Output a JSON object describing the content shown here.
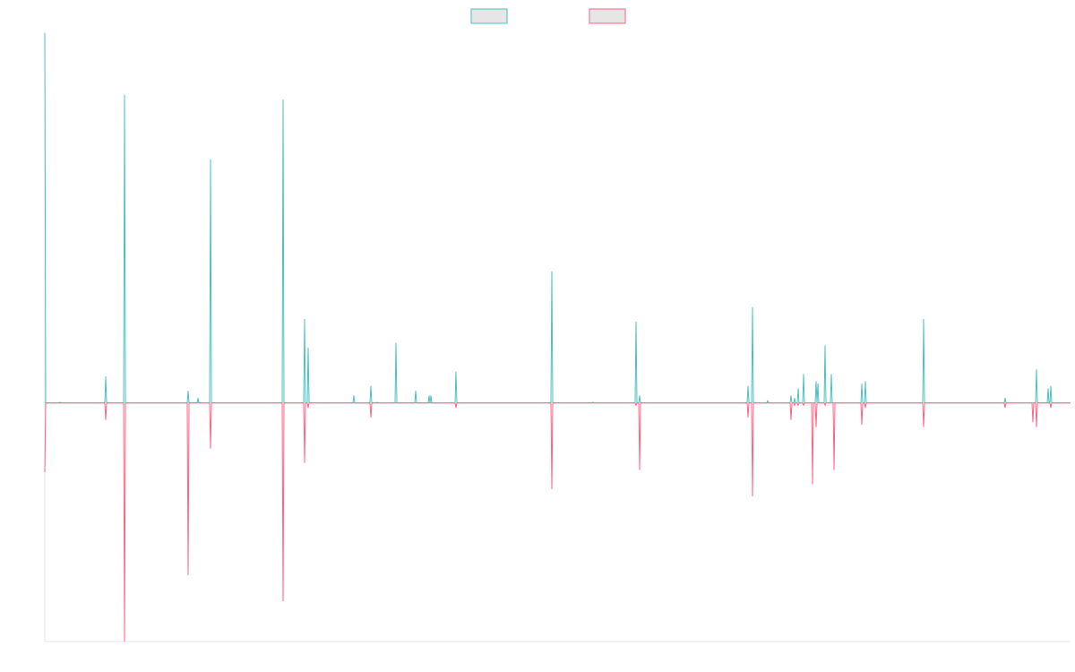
{
  "chart_data": {
    "type": "line",
    "title": "",
    "xlabel": "",
    "ylabel": "",
    "ylim": [
      -1.0,
      1.55
    ],
    "grid": false,
    "legend_placement": "top-center",
    "x": [
      0,
      1,
      2,
      3,
      4,
      5,
      6,
      7,
      8,
      9,
      10,
      11,
      12,
      13,
      14,
      15,
      16,
      17,
      18,
      19,
      20,
      21,
      22,
      23,
      24,
      25,
      26,
      27,
      28,
      29,
      30,
      31,
      32,
      33,
      34,
      35,
      36,
      37,
      38,
      39,
      40,
      41,
      42,
      43,
      44,
      45,
      46,
      47,
      48,
      49,
      50,
      51,
      52,
      53,
      54,
      55,
      56,
      57,
      58,
      59,
      60,
      61,
      62,
      63,
      64,
      65,
      66,
      67,
      68,
      69,
      70,
      71,
      72,
      73,
      74,
      75,
      76,
      77,
      78,
      79,
      80,
      81,
      82,
      83,
      84,
      85,
      86,
      87,
      88,
      89,
      90,
      91,
      92,
      93,
      94,
      95,
      96,
      97,
      98,
      99,
      100,
      101,
      102,
      103,
      104,
      105,
      106,
      107,
      108,
      109,
      110,
      111,
      112,
      113,
      114,
      115,
      116,
      117,
      118,
      119,
      120,
      121,
      122,
      123,
      124,
      125,
      126,
      127,
      128,
      129,
      130,
      131,
      132,
      133,
      134,
      135,
      136,
      137,
      138,
      139,
      140,
      141,
      142,
      143,
      144,
      145,
      146,
      147,
      148,
      149,
      150,
      151,
      152,
      153,
      154,
      155,
      156,
      157,
      158,
      159,
      160,
      161,
      162,
      163,
      164,
      165,
      166,
      167,
      168,
      169,
      170,
      171,
      172,
      173,
      174,
      175,
      176,
      177,
      178,
      179,
      180,
      181,
      182,
      183,
      184,
      185,
      186,
      187,
      188,
      189,
      190,
      191,
      192,
      193,
      194,
      195,
      196,
      197,
      198,
      199,
      200,
      201,
      202,
      203,
      204,
      205,
      206,
      207,
      208,
      209,
      210,
      211,
      212,
      213,
      214,
      215,
      216,
      217,
      218,
      219,
      220,
      221,
      222,
      223,
      224,
      225,
      226,
      227,
      228,
      229,
      230,
      231,
      232,
      233,
      234,
      235,
      236,
      237,
      238,
      239,
      240,
      241,
      242,
      243,
      244,
      245,
      246,
      247,
      248,
      249,
      250,
      251,
      252,
      253,
      254,
      255,
      256,
      257,
      258,
      259,
      260,
      261,
      262,
      263,
      264,
      265,
      266,
      267,
      268,
      269,
      270,
      271,
      272,
      273,
      274,
      275,
      276,
      277,
      278,
      279,
      280,
      281,
      282,
      283,
      284,
      285,
      286,
      287,
      288,
      289,
      290,
      291,
      292,
      293,
      294,
      295,
      296,
      297,
      298,
      299,
      300,
      301,
      302,
      303,
      304,
      305,
      306,
      307,
      308,
      309,
      310,
      311,
      312,
      313,
      314,
      315,
      316,
      317,
      318,
      319,
      320,
      321,
      322,
      323,
      324,
      325,
      326,
      327,
      328,
      329,
      330,
      331,
      332,
      333,
      334,
      335,
      336,
      337,
      338,
      339,
      340,
      341,
      342,
      343,
      344,
      345,
      346,
      347,
      348,
      349,
      350,
      351,
      352,
      353,
      354,
      355,
      356,
      357,
      358,
      359,
      360,
      361,
      362,
      363,
      364,
      365,
      366,
      367,
      368,
      369,
      370,
      371,
      372,
      373,
      374,
      375,
      376,
      377,
      378,
      379,
      380,
      381,
      382,
      383,
      384,
      385,
      386,
      387,
      388,
      389,
      390,
      391,
      392,
      393,
      394,
      395,
      396,
      397,
      398,
      399,
      400,
      401,
      402,
      403,
      404,
      405,
      406,
      407,
      408,
      409,
      410,
      411,
      412,
      413,
      414,
      415,
      416,
      417,
      418,
      419,
      420,
      421,
      422,
      423,
      424,
      425,
      426,
      427,
      428,
      429,
      430,
      431,
      432,
      433,
      434,
      435,
      436,
      437,
      438,
      439,
      440,
      441,
      442,
      443,
      444,
      445,
      446,
      447,
      448,
      449,
      450,
      451,
      452,
      453,
      454,
      455,
      456,
      457,
      458,
      459,
      460,
      461,
      462,
      463,
      464,
      465,
      466,
      467,
      468,
      469,
      470,
      471,
      472,
      473,
      474,
      475,
      476,
      477,
      478,
      479,
      480,
      481,
      482,
      483,
      484,
      485,
      486,
      487,
      488,
      489,
      490,
      491,
      492,
      493,
      494,
      495,
      496,
      497,
      498,
      499,
      500,
      501,
      502,
      503,
      504,
      505,
      506,
      507,
      508,
      509,
      510,
      511,
      512,
      513,
      514,
      515,
      516,
      517,
      518,
      519,
      520,
      521,
      522,
      523,
      524,
      525,
      526,
      527,
      528,
      529,
      530,
      531,
      532,
      533,
      534,
      535,
      536,
      537,
      538,
      539,
      540,
      541,
      542,
      543,
      544,
      545,
      546,
      547,
      548,
      549,
      550,
      551,
      552,
      553,
      554,
      555,
      556,
      557,
      558,
      559,
      560,
      561,
      562,
      563,
      564,
      565,
      566,
      567,
      568,
      569,
      570,
      571,
      572,
      573,
      574,
      575,
      576,
      577,
      578,
      579,
      580,
      581,
      582,
      583,
      584,
      585,
      586,
      587,
      588,
      589,
      590,
      591,
      592,
      593,
      594,
      595,
      596,
      597,
      598,
      599,
      600,
      601,
      602,
      603,
      604,
      605,
      606,
      607,
      608,
      609,
      610,
      611,
      612,
      613,
      614,
      615,
      616,
      617,
      618,
      619,
      620,
      621,
      622,
      623,
      624,
      625,
      626,
      627,
      628,
      629,
      630,
      631,
      632,
      633,
      634,
      635,
      636,
      637,
      638,
      639,
      640,
      641,
      642,
      643,
      644,
      645,
      646,
      647,
      648,
      649,
      650,
      651,
      652,
      653,
      654,
      655,
      656,
      657,
      658,
      659,
      660,
      661,
      662,
      663,
      664,
      665,
      666,
      667,
      668,
      669,
      670,
      671,
      672,
      673,
      674,
      675,
      676,
      677,
      678,
      679,
      680,
      681,
      682,
      683,
      684,
      685,
      686,
      687,
      688,
      689,
      690,
      691,
      692,
      693,
      694,
      695,
      696,
      697,
      698,
      699,
      700,
      701,
      702,
      703,
      704,
      705,
      706,
      707,
      708,
      709,
      710,
      711,
      712,
      713,
      714,
      715,
      716,
      717,
      718,
      719,
      720,
      721,
      722,
      723,
      724,
      725,
      726,
      727,
      728,
      729,
      730,
      731,
      732,
      733,
      734,
      735,
      736,
      737,
      738,
      739,
      740,
      741,
      742,
      743,
      744,
      745,
      746,
      747,
      748,
      749,
      750,
      751,
      752,
      753,
      754,
      755,
      756,
      757,
      758,
      759,
      760,
      761,
      762,
      763,
      764,
      765,
      766,
      767,
      768,
      769,
      770,
      771,
      772,
      773,
      774,
      775,
      776,
      777,
      778,
      779,
      780,
      781,
      782,
      783,
      784,
      785,
      786,
      787,
      788,
      789,
      790,
      791,
      792,
      793,
      794,
      795,
      796,
      797,
      798,
      799,
      800,
      801,
      802,
      803,
      804,
      805,
      806,
      807,
      808,
      809,
      810,
      811,
      812,
      813,
      814,
      815,
      816,
      817,
      818,
      819,
      820,
      821,
      822,
      823,
      824,
      825,
      826,
      827,
      828,
      829,
      830,
      831,
      832,
      833,
      834,
      835,
      836,
      837,
      838,
      839,
      840,
      841,
      842,
      843,
      844,
      845,
      846,
      847,
      848,
      849,
      850,
      851,
      852,
      853,
      854,
      855,
      856,
      857,
      858,
      859,
      860,
      861,
      862,
      863,
      864,
      865,
      866,
      867,
      868,
      869,
      870,
      871,
      872,
      873,
      874,
      875,
      876,
      877,
      878,
      879,
      880,
      881,
      882,
      883,
      884,
      885,
      886,
      887,
      888,
      889,
      890,
      891,
      892,
      893,
      894,
      895,
      896,
      897,
      898,
      899,
      900,
      901,
      902,
      903,
      904,
      905,
      906,
      907,
      908,
      909,
      910,
      911,
      912,
      913,
      914,
      915,
      916,
      917,
      918,
      919,
      920,
      921,
      922,
      923,
      924,
      925,
      926,
      927,
      928,
      929,
      930,
      931,
      932,
      933,
      934,
      935,
      936,
      937,
      938,
      939,
      940,
      941,
      942,
      943,
      944,
      945,
      946,
      947,
      948,
      949,
      950,
      951,
      952,
      953,
      954,
      955,
      956,
      957,
      958,
      959,
      960,
      961,
      962,
      963,
      964,
      965,
      966,
      967,
      968,
      969,
      970,
      971,
      972,
      973,
      974,
      975,
      976,
      977,
      978,
      979,
      980,
      981,
      982,
      983,
      984,
      985,
      986,
      987,
      988,
      989,
      990,
      991,
      992,
      993,
      994,
      995,
      996,
      997,
      998,
      999,
      1000,
      1001,
      1002,
      1003,
      1004,
      1005,
      1006,
      1007,
      1008,
      1009,
      1010,
      1011,
      1012,
      1013,
      1014,
      1015,
      1016,
      1017,
      1018,
      1019,
      1020,
      1021,
      1022,
      1023,
      1024,
      1025,
      1026,
      1027,
      1028,
      1029,
      1030,
      1031,
      1032,
      1033,
      1034,
      1035,
      1036,
      1037,
      1038,
      1039,
      1040,
      1041,
      1042,
      1043,
      1044,
      1045,
      1046,
      1047,
      1048,
      1049,
      1050,
      1051,
      1052,
      1053,
      1054,
      1055,
      1056,
      1057,
      1058,
      1059,
      1060,
      1061,
      1062,
      1063,
      1064,
      1065,
      1066,
      1067,
      1068,
      1069,
      1070,
      1071,
      1072,
      1073,
      1074,
      1075,
      1076,
      1077,
      1078,
      1079,
      1080,
      1081,
      1082,
      1083,
      1084,
      1085,
      1086,
      1087,
      1088,
      1089,
      1090,
      1091,
      1092,
      1093,
      1094,
      1095,
      1096,
      1097,
      1098,
      1099,
      1100,
      1101,
      1102,
      1103,
      1104,
      1105,
      1106,
      1107,
      1108,
      1109,
      1110,
      1111,
      1112,
      1113,
      1114,
      1115,
      1116,
      1117,
      1118,
      1119,
      1120,
      1121,
      1122,
      1123,
      1124,
      1125,
      1126,
      1127,
      1128,
      1129,
      1130,
      1131,
      1132,
      1133,
      1134,
      1135,
      1136,
      1137,
      1138,
      1139,
      1140,
      1141,
      1142,
      1143,
      1144,
      1145
    ],
    "series": [
      {
        "color": "#4BC0C0",
        "spikes": [
          [
            0,
            1.55
          ],
          [
            1,
            0.0
          ],
          [
            2,
            0.0
          ],
          [
            17,
            0.003
          ],
          [
            68,
            0.11
          ],
          [
            69,
            0.0
          ],
          [
            89,
            1.29
          ],
          [
            160,
            0.05
          ],
          [
            171,
            0.02
          ],
          [
            185,
            1.02
          ],
          [
            266,
            1.27
          ],
          [
            280,
            0.0
          ],
          [
            290,
            0.35
          ],
          [
            294,
            0.23
          ],
          [
            345,
            0.03
          ],
          [
            364,
            0.07
          ],
          [
            371,
            0.003
          ],
          [
            392,
            0.25
          ],
          [
            414,
            0.05
          ],
          [
            429,
            0.03
          ],
          [
            431,
            0.03
          ],
          [
            459,
            0.13
          ],
          [
            566,
            0.55
          ],
          [
            612,
            0.003
          ],
          [
            660,
            0.34
          ],
          [
            664,
            0.03
          ],
          [
            785,
            0.07
          ],
          [
            790,
            0.4
          ],
          [
            807,
            0.01
          ],
          [
            833,
            0.03
          ],
          [
            837,
            0.02
          ],
          [
            841,
            0.06
          ],
          [
            847,
            0.12
          ],
          [
            861,
            0.09
          ],
          [
            863,
            0.08
          ],
          [
            871,
            0.24
          ],
          [
            878,
            0.12
          ],
          [
            912,
            0.08
          ],
          [
            916,
            0.09
          ],
          [
            981,
            0.35
          ],
          [
            1072,
            0.02
          ],
          [
            1107,
            0.14
          ],
          [
            1120,
            0.06
          ],
          [
            1123,
            0.07
          ]
        ]
      },
      {
        "color": "#FF6384",
        "spikes": [
          [
            0,
            -0.29
          ],
          [
            68,
            -0.07
          ],
          [
            89,
            -1.0
          ],
          [
            160,
            -0.72
          ],
          [
            185,
            -0.19
          ],
          [
            266,
            -0.83
          ],
          [
            290,
            -0.25
          ],
          [
            294,
            -0.02
          ],
          [
            364,
            -0.06
          ],
          [
            459,
            -0.02
          ],
          [
            566,
            -0.36
          ],
          [
            660,
            -0.01
          ],
          [
            664,
            -0.28
          ],
          [
            785,
            -0.06
          ],
          [
            790,
            -0.39
          ],
          [
            833,
            -0.07
          ],
          [
            837,
            -0.01
          ],
          [
            841,
            -0.01
          ],
          [
            847,
            -0.01
          ],
          [
            857,
            -0.34
          ],
          [
            861,
            -0.1
          ],
          [
            871,
            -0.01
          ],
          [
            881,
            -0.28
          ],
          [
            912,
            -0.09
          ],
          [
            916,
            -0.02
          ],
          [
            981,
            -0.1
          ],
          [
            1072,
            -0.02
          ],
          [
            1103,
            -0.08
          ],
          [
            1107,
            -0.1
          ],
          [
            1123,
            -0.02
          ]
        ]
      }
    ]
  },
  "legend": {
    "items": [
      {
        "label": "",
        "border_color": "#4BC0C0",
        "fill_color": "#E6E6E6"
      },
      {
        "label": "",
        "border_color": "#FF6384",
        "fill_color": "#E6E6E6"
      }
    ]
  }
}
